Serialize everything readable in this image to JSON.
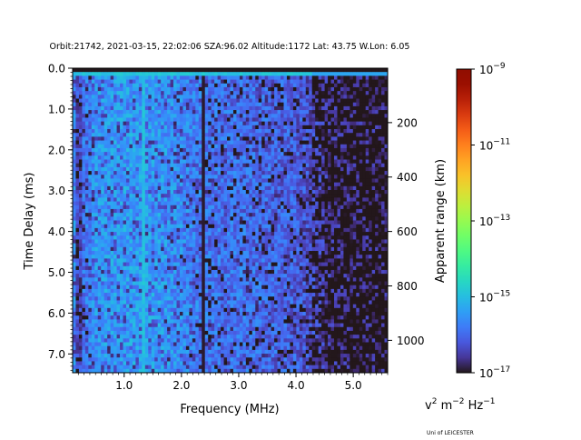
{
  "chart_data": {
    "type": "heatmap",
    "title": "Orbit:21742, 2021-03-15, 22:02:06 SZA:96.02 Altitude:1172 Lat: 43.75 W.Lon: 6.05",
    "xlabel": "Frequency (MHz)",
    "ylabel": "Time Delay (ms)",
    "y2label": "Apparent range (km)",
    "xlim": [
      0.1,
      5.6
    ],
    "ylim": [
      7.46,
      0.0
    ],
    "y2lim": [
      0,
      1119
    ],
    "xticks": [
      1.0,
      2.0,
      3.0,
      4.0,
      5.0
    ],
    "xtick_labels": [
      "1.0",
      "2.0",
      "3.0",
      "4.0",
      "5.0"
    ],
    "yticks": [
      0.0,
      1.0,
      2.0,
      3.0,
      4.0,
      5.0,
      6.0,
      7.0
    ],
    "ytick_labels": [
      "0.0",
      "1.0",
      "2.0",
      "3.0",
      "4.0",
      "5.0",
      "6.0",
      "7.0"
    ],
    "y2ticks": [
      200,
      400,
      600,
      800,
      1000
    ],
    "y2tick_labels": [
      "200",
      "400",
      "600",
      "800",
      "1000"
    ],
    "colorbar": {
      "scale": "log",
      "range": [
        1e-17,
        1e-09
      ],
      "colormap": "turbo",
      "tick_exponents": [
        -9,
        -11,
        -13,
        -15,
        -17
      ],
      "tick_base": "10",
      "units_main": "v",
      "units_sup1": "2",
      "units_m": " m",
      "units_sup2": "−2",
      "units_hz": " Hz",
      "units_sup3": "−1"
    },
    "grid": false,
    "n_freq_bins": 100,
    "n_delay_bins": 80,
    "mean_log10_power_profile": {
      "freq_mhz": [
        0.1,
        0.3,
        0.5,
        1.0,
        1.5,
        2.0,
        2.3,
        2.45,
        3.0,
        3.5,
        4.0,
        4.3,
        4.6,
        5.0,
        5.6
      ],
      "log10_power": [
        -15.6,
        -15.9,
        -15.5,
        -15.4,
        -15.4,
        -15.6,
        -15.8,
        -15.9,
        -15.9,
        -16.0,
        -16.1,
        -16.4,
        -16.7,
        -16.8,
        -16.8
      ]
    },
    "features": [
      {
        "label": "surface/top echo row",
        "delay_ms": 0.15,
        "log10_power": -14.8
      },
      {
        "label": "bright line",
        "freq_mhz": 1.33,
        "log10_power": -15.0
      },
      {
        "label": "dark line",
        "freq_mhz": 2.38,
        "log10_power": -17.0
      },
      {
        "label": "dark line",
        "freq_mhz": 0.2,
        "log10_power": -16.9
      },
      {
        "label": "dark top row",
        "delay_ms": 0.03,
        "log10_power": -17.0
      }
    ]
  },
  "credit": "Uni of LEICESTER"
}
